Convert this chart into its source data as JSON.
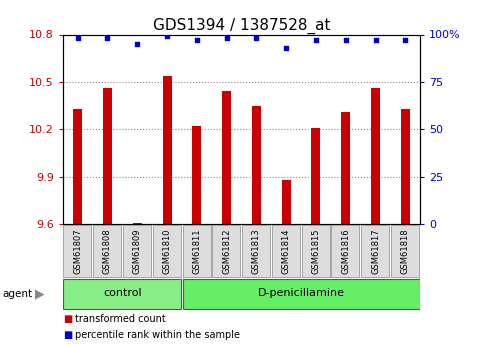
{
  "title": "GDS1394 / 1387528_at",
  "samples": [
    "GSM61807",
    "GSM61808",
    "GSM61809",
    "GSM61810",
    "GSM61811",
    "GSM61812",
    "GSM61813",
    "GSM61814",
    "GSM61815",
    "GSM61816",
    "GSM61817",
    "GSM61818"
  ],
  "bar_values": [
    10.33,
    10.46,
    9.61,
    10.54,
    10.22,
    10.44,
    10.35,
    9.88,
    10.21,
    10.31,
    10.46,
    10.33
  ],
  "percentile_values": [
    98,
    98,
    95,
    99,
    97,
    98,
    98,
    93,
    97,
    97,
    97,
    97
  ],
  "ylim_left": [
    9.6,
    10.8
  ],
  "ylim_right": [
    0,
    100
  ],
  "yticks_left": [
    9.6,
    9.9,
    10.2,
    10.5,
    10.8
  ],
  "yticks_right": [
    0,
    25,
    50,
    75,
    100
  ],
  "ytick_labels_right": [
    "0",
    "25",
    "50",
    "75",
    "100%"
  ],
  "bar_color": "#cc0000",
  "dot_color": "#0000cc",
  "bar_bottom": 9.6,
  "bar_width": 0.3,
  "groups": [
    {
      "label": "control",
      "start": 0,
      "end": 4,
      "color": "#88ee88"
    },
    {
      "label": "D-penicillamine",
      "start": 4,
      "end": 12,
      "color": "#66ee66"
    }
  ],
  "legend_items": [
    {
      "color": "#cc0000",
      "label": "transformed count"
    },
    {
      "color": "#0000cc",
      "label": "percentile rank within the sample"
    }
  ],
  "grid_color": "#888888",
  "background_color": "#ffffff",
  "title_fontsize": 11,
  "tick_fontsize": 8,
  "sample_fontsize": 6,
  "group_fontsize": 8
}
